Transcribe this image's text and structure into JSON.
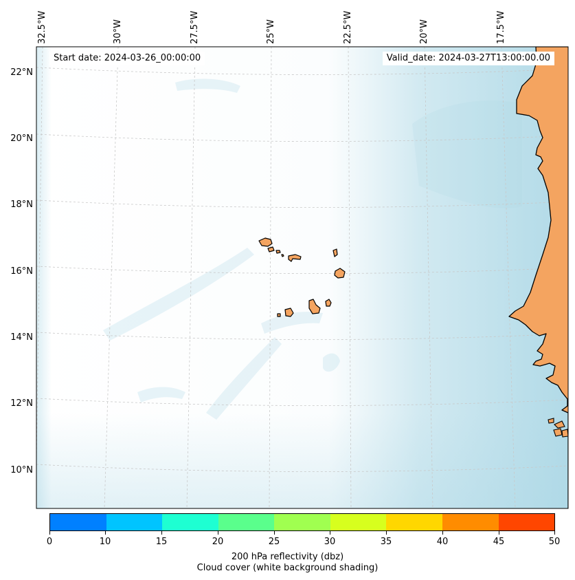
{
  "header": {
    "start_date": "Start date: 2024-03-26_00:00:00",
    "valid_date": "Valid_date: 2024-03-27T13:00:00.00"
  },
  "axes": {
    "lon_labels": [
      "32.5°W",
      "30°W",
      "27.5°W",
      "25°W",
      "22.5°W",
      "20°W",
      "17.5°W"
    ],
    "lat_labels": [
      "22°N",
      "20°N",
      "18°N",
      "16°N",
      "14°N",
      "12°N",
      "10°N"
    ]
  },
  "colorbar": {
    "ticks": [
      "0",
      "10",
      "15",
      "20",
      "25",
      "30",
      "35",
      "40",
      "45",
      "50"
    ],
    "colors": [
      "#0080ff",
      "#00c4ff",
      "#1effd2",
      "#5aff8c",
      "#a0ff50",
      "#d7ff1e",
      "#ffd700",
      "#ff8c00",
      "#ff4600"
    ],
    "title": "200 hPa reflectivity (dbz)",
    "subtitle": "Cloud cover (white background shading)"
  },
  "map_colors": {
    "land": "#f4a460",
    "cloud": "#add8e6",
    "grid": "#c8c8c8"
  }
}
